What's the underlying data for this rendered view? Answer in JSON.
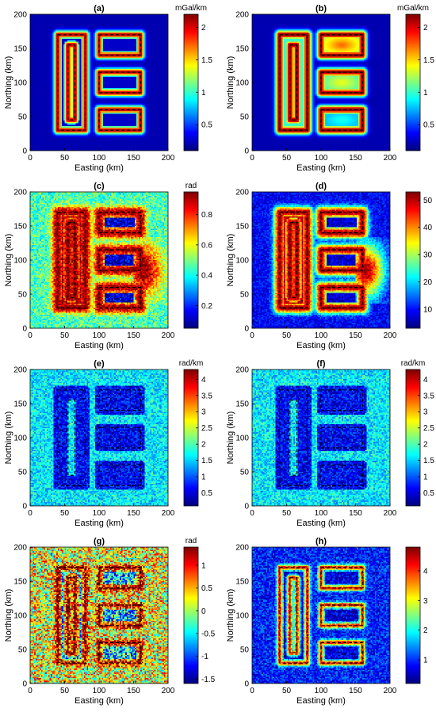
{
  "chart_data": [
    {
      "type": "heatmap",
      "panel": "a",
      "title": "(a)",
      "xlabel": "Easting (km)",
      "ylabel": "Northing (km)",
      "xlim": [
        0,
        200
      ],
      "ylim": [
        0,
        200
      ],
      "xticks": [
        "0",
        "50",
        "100",
        "150",
        "200"
      ],
      "yticks": [
        "0",
        "50",
        "100",
        "150",
        "200"
      ],
      "colorbar": {
        "unit": "mGal/km",
        "range": [
          0.1,
          2.2
        ],
        "ticks": [
          "0.5",
          "1",
          "1.5",
          "2"
        ],
        "tick_values": [
          0.5,
          1,
          1.5,
          2
        ]
      },
      "style": "edge",
      "background": 0.2,
      "ring": 2.1,
      "interior": [
        0.25,
        0.25,
        0.25,
        0.25
      ],
      "noise": 0
    },
    {
      "type": "heatmap",
      "panel": "b",
      "title": "(b)",
      "xlabel": "Easting (km)",
      "ylabel": "Northing (km)",
      "xlim": [
        0,
        200
      ],
      "ylim": [
        0,
        200
      ],
      "xticks": [
        "0",
        "50",
        "100",
        "150",
        "200"
      ],
      "yticks": [
        "0",
        "50",
        "100",
        "150",
        "200"
      ],
      "colorbar": {
        "unit": "mGal/km",
        "range": [
          0.1,
          2.2
        ],
        "ticks": [
          "0.5",
          "1",
          "1.5",
          "2"
        ],
        "tick_values": [
          0.5,
          1,
          1.5,
          2
        ]
      },
      "style": "smooth",
      "background": 0.2,
      "ring": 2.2,
      "interior": [
        0.9,
        1.75,
        1.4,
        0.95
      ],
      "noise": 0
    },
    {
      "type": "heatmap",
      "panel": "c",
      "title": "(c)",
      "xlabel": "Easting (km)",
      "ylabel": "Northing (km)",
      "xlim": [
        0,
        200
      ],
      "ylim": [
        0,
        200
      ],
      "xticks": [
        "0",
        "50",
        "100",
        "150",
        "200"
      ],
      "yticks": [
        "0",
        "50",
        "100",
        "150",
        "200"
      ],
      "colorbar": {
        "unit": "rad",
        "range": [
          0.05,
          0.95
        ],
        "ticks": [
          "0.2",
          "0.4",
          "0.6",
          "0.8"
        ],
        "tick_values": [
          0.2,
          0.4,
          0.6,
          0.8
        ]
      },
      "style": "tilt",
      "background": 0.45,
      "ring": 0.95,
      "interior": [
        0.45,
        0.45,
        0.45,
        0.45
      ],
      "noise": 0.12
    },
    {
      "type": "heatmap",
      "panel": "d",
      "title": "(d)",
      "xlabel": "Easting (km)",
      "ylabel": "Northing (km)",
      "xlim": [
        0,
        200
      ],
      "ylim": [
        0,
        200
      ],
      "xticks": [
        "0",
        "50",
        "100",
        "150",
        "200"
      ],
      "yticks": [
        "0",
        "50",
        "100",
        "150",
        "200"
      ],
      "colorbar": {
        "unit": "",
        "range": [
          3,
          53
        ],
        "ticks": [
          "10",
          "20",
          "30",
          "40",
          "50"
        ],
        "tick_values": [
          10,
          20,
          30,
          40,
          50
        ]
      },
      "style": "tilt",
      "background": 9,
      "ring": 52,
      "interior": [
        6,
        6,
        6,
        6
      ],
      "noise": 4
    },
    {
      "type": "heatmap",
      "panel": "e",
      "title": "(e)",
      "xlabel": "Easting (km)",
      "ylabel": "Northing (km)",
      "xlim": [
        0,
        200
      ],
      "ylim": [
        0,
        200
      ],
      "xticks": [
        "0",
        "50",
        "100",
        "150",
        "200"
      ],
      "yticks": [
        "0",
        "50",
        "100",
        "150",
        "200"
      ],
      "colorbar": {
        "unit": "rad/km",
        "range": [
          0.1,
          4.3
        ],
        "ticks": [
          "0.5",
          "1",
          "1.5",
          "2",
          "2.5",
          "3",
          "3.5",
          "4"
        ],
        "tick_values": [
          0.5,
          1,
          1.5,
          2,
          2.5,
          3,
          3.5,
          4
        ]
      },
      "style": "dark",
      "background": 1.6,
      "ring": 1.6,
      "interior": [
        0.6,
        0.6,
        0.6,
        0.6
      ],
      "noise": 0.5
    },
    {
      "type": "heatmap",
      "panel": "f",
      "title": "(f)",
      "xlabel": "Easting (km)",
      "ylabel": "Northing (km)",
      "xlim": [
        0,
        200
      ],
      "ylim": [
        0,
        200
      ],
      "xticks": [
        "0",
        "50",
        "100",
        "150",
        "200"
      ],
      "yticks": [
        "0",
        "50",
        "100",
        "150",
        "200"
      ],
      "colorbar": {
        "unit": "rad/km",
        "range": [
          0.1,
          4.3
        ],
        "ticks": [
          "0.5",
          "1",
          "1.5",
          "2",
          "2.5",
          "3",
          "3.5",
          "4"
        ],
        "tick_values": [
          0.5,
          1,
          1.5,
          2,
          2.5,
          3,
          3.5,
          4
        ]
      },
      "style": "dark",
      "background": 1.6,
      "ring": 1.6,
      "interior": [
        0.6,
        0.6,
        0.6,
        0.6
      ],
      "noise": 0.5
    },
    {
      "type": "heatmap",
      "panel": "g",
      "title": "(g)",
      "xlabel": "Easting (km)",
      "ylabel": "Northing (km)",
      "xlim": [
        0,
        200
      ],
      "ylim": [
        0,
        200
      ],
      "xticks": [
        "0",
        "50",
        "100",
        "150",
        "200"
      ],
      "yticks": [
        "0",
        "50",
        "100",
        "150",
        "200"
      ],
      "colorbar": {
        "unit": "rad",
        "range": [
          -1.6,
          1.4
        ],
        "ticks": [
          "-1.5",
          "-1",
          "-0.5",
          "0",
          "0.5",
          "1"
        ],
        "tick_values": [
          -1.5,
          -1,
          -0.5,
          0,
          0.5,
          1
        ]
      },
      "style": "ring",
      "background": 0.2,
      "ring": 1.35,
      "interior": [
        -0.6,
        -0.6,
        -0.6,
        -0.6
      ],
      "noise": 0.9
    },
    {
      "type": "heatmap",
      "panel": "h",
      "title": "(h)",
      "xlabel": "Easting (km)",
      "ylabel": "Northing (km)",
      "xlim": [
        0,
        200
      ],
      "ylim": [
        0,
        200
      ],
      "xticks": [
        "0",
        "50",
        "100",
        "150",
        "200"
      ],
      "yticks": [
        "0",
        "50",
        "100",
        "150",
        "200"
      ],
      "colorbar": {
        "unit": "",
        "range": [
          0.2,
          4.8
        ],
        "ticks": [
          "1",
          "2",
          "3",
          "4"
        ],
        "tick_values": [
          1,
          2,
          3,
          4
        ]
      },
      "style": "ring",
      "background": 0.9,
      "ring": 4.2,
      "interior": [
        0.6,
        0.6,
        0.6,
        0.6
      ],
      "noise": 0.55
    }
  ],
  "sources": [
    {
      "name": "dyke",
      "easting": [
        55,
        65
      ],
      "northing": [
        45,
        155
      ]
    },
    {
      "name": "block-outer",
      "easting": [
        40,
        80
      ],
      "northing": [
        30,
        170
      ]
    },
    {
      "name": "block-top",
      "easting": [
        100,
        160
      ],
      "northing": [
        140,
        170
      ]
    },
    {
      "name": "block-middle",
      "easting": [
        100,
        160
      ],
      "northing": [
        85,
        115
      ]
    },
    {
      "name": "block-bottom",
      "easting": [
        100,
        160
      ],
      "northing": [
        30,
        60
      ]
    }
  ]
}
